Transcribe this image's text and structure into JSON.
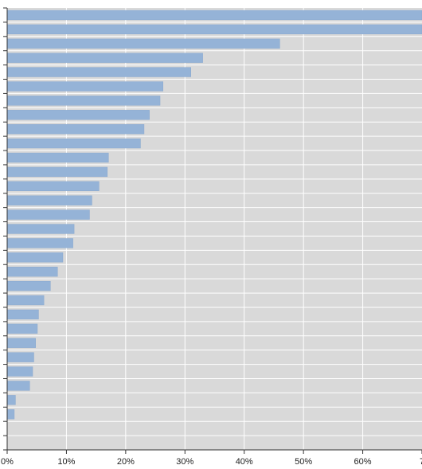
{
  "chart_data": {
    "type": "bar",
    "orientation": "horizontal",
    "title": "",
    "xlabel": "",
    "ylabel": "",
    "x_tick_labels": [
      "0%",
      "10%",
      "20%",
      "30%",
      "40%",
      "50%",
      "60%",
      "7"
    ],
    "xlim": [
      0,
      70
    ],
    "grid": true,
    "legend": "none",
    "colors": {
      "bar": "#95b3d7",
      "bar_edge": "#8aa9cf",
      "plot_background": "#d9d9d9",
      "gridline": "#ffffff",
      "axis": "#333333"
    },
    "values": [
      70,
      70,
      46,
      33,
      31,
      26.3,
      25.8,
      24,
      23.1,
      22.5,
      17.1,
      16.9,
      15.5,
      14.3,
      13.9,
      11.3,
      11.1,
      9.4,
      8.5,
      7.3,
      6.2,
      5.3,
      5.1,
      4.8,
      4.5,
      4.3,
      3.8,
      1.4,
      1.2,
      0,
      0
    ]
  }
}
